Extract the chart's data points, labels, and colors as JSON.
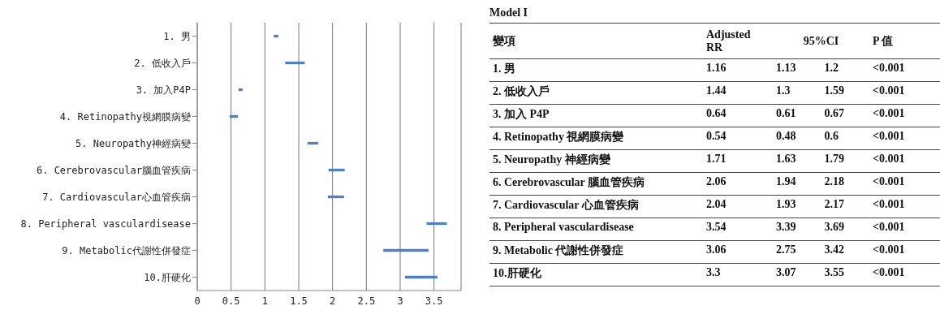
{
  "chart_data": [
    {
      "type": "bar",
      "orientation": "horizontal",
      "categories": [
        "1. 男",
        "2. 低收入戶",
        "3. 加入P4P",
        "4. Retinopathy視網膜病變",
        "5. Neuropathy神經病變",
        "6. Cerebrovascular腦血管疾病",
        "7. Cardiovascular心血管疾病",
        "8. Peripheral vasculardisease",
        "9. Metabolic代謝性併發症",
        "10.肝硬化"
      ],
      "base": [
        1.13,
        1.3,
        0.61,
        0.48,
        1.63,
        1.94,
        1.93,
        3.39,
        2.75,
        3.07
      ],
      "values": [
        0.07,
        0.29,
        0.06,
        0.12,
        0.16,
        0.24,
        0.24,
        0.3,
        0.67,
        0.48
      ],
      "color": "#4f81bd",
      "xlim": [
        0,
        3.9
      ],
      "xticks": [
        0,
        0.5,
        1,
        1.5,
        2,
        2.5,
        3,
        3.5
      ],
      "grid": "x",
      "legend": false
    },
    {
      "type": "other",
      "title": "Model I",
      "categories": [
        "1.  男",
        "2.  低收入戶",
        "3.  加入 P4P",
        "4. Retinopathy 視網膜病變",
        "5. Neuropathy 神經病變",
        "6. Cerebrovascular 腦血管疾病",
        "7. Cardiovascular 心血管疾病",
        "8. Peripheral vasculardisease",
        "9. Metabolic 代謝性併發症",
        "10.肝硬化"
      ],
      "annotations": [
        "變項",
        "Adjusted RR",
        "95%CI",
        "P 值",
        "1.16",
        "1.13",
        "1.2",
        "<0.001",
        "1.44",
        "1.3",
        "1.59",
        "<0.001",
        "0.64",
        "0.61",
        "0.67",
        "<0.001",
        "0.54",
        "0.48",
        "0.6",
        "<0.001",
        "1.71",
        "1.63",
        "1.79",
        "<0.001",
        "2.06",
        "1.94",
        "2.18",
        "<0.001",
        "2.04",
        "1.93",
        "2.17",
        "<0.001",
        "3.54",
        "3.39",
        "3.69",
        "<0.001",
        "3.06",
        "2.75",
        "3.42",
        "<0.001",
        "3.3",
        "3.07",
        "3.55",
        "<0.001"
      ]
    }
  ]
}
